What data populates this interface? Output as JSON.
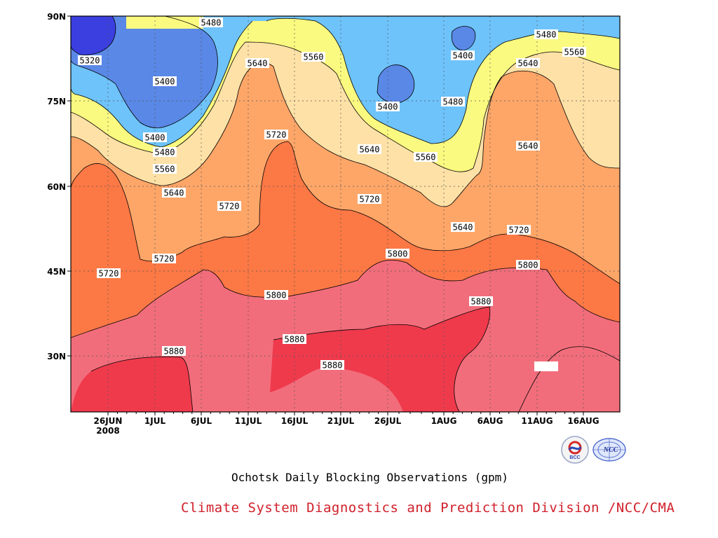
{
  "chart_data": {
    "type": "contour",
    "title": "Ochotsk Daily Blocking Observations (gpm)",
    "credit": "Climate System Diagnostics and Prediction Division /NCC/CMA",
    "x_tick_labels": [
      "26JUN",
      "1JUL",
      "6JUL",
      "11JUL",
      "16JUL",
      "21JUL",
      "26JUL",
      "1AUG",
      "6AUG",
      "11AUG",
      "16AUG"
    ],
    "x_year_label": "2008",
    "y_tick_labels": [
      "90N",
      "75N",
      "60N",
      "45N",
      "30N"
    ],
    "xlim": [
      "2008-06-23",
      "2008-08-21"
    ],
    "ylim": [
      20,
      90
    ],
    "grid": true,
    "contour_levels": [
      5320,
      5400,
      5480,
      5560,
      5640,
      5720,
      5800,
      5880
    ],
    "colors": {
      "below_5320": "#3b3fe0",
      "5320_5400": "#5a88e6",
      "5400_5480": "#6ec3fa",
      "5480_5560": "#fbfa80",
      "5560_5640": "#fee1a6",
      "5640_5720": "#fea668",
      "5720_5800": "#fc7845",
      "5800_5880": "#f26d7b",
      "above_5880": "#ef3a4c"
    },
    "contour_labels": [
      "5480",
      "5320",
      "5400",
      "5400",
      "5480",
      "5560",
      "5640",
      "5640",
      "5560",
      "5400",
      "5720",
      "5640",
      "5560",
      "5720",
      "5720",
      "5720",
      "5720",
      "5720",
      "5640",
      "5800",
      "5800",
      "5800",
      "5880",
      "5880",
      "5880",
      "5880",
      "5400",
      "5480",
      "5480",
      "5560",
      "5640",
      "5640"
    ]
  },
  "logos": {
    "bcc_text": "BCC",
    "ncc_text": "NCC"
  }
}
